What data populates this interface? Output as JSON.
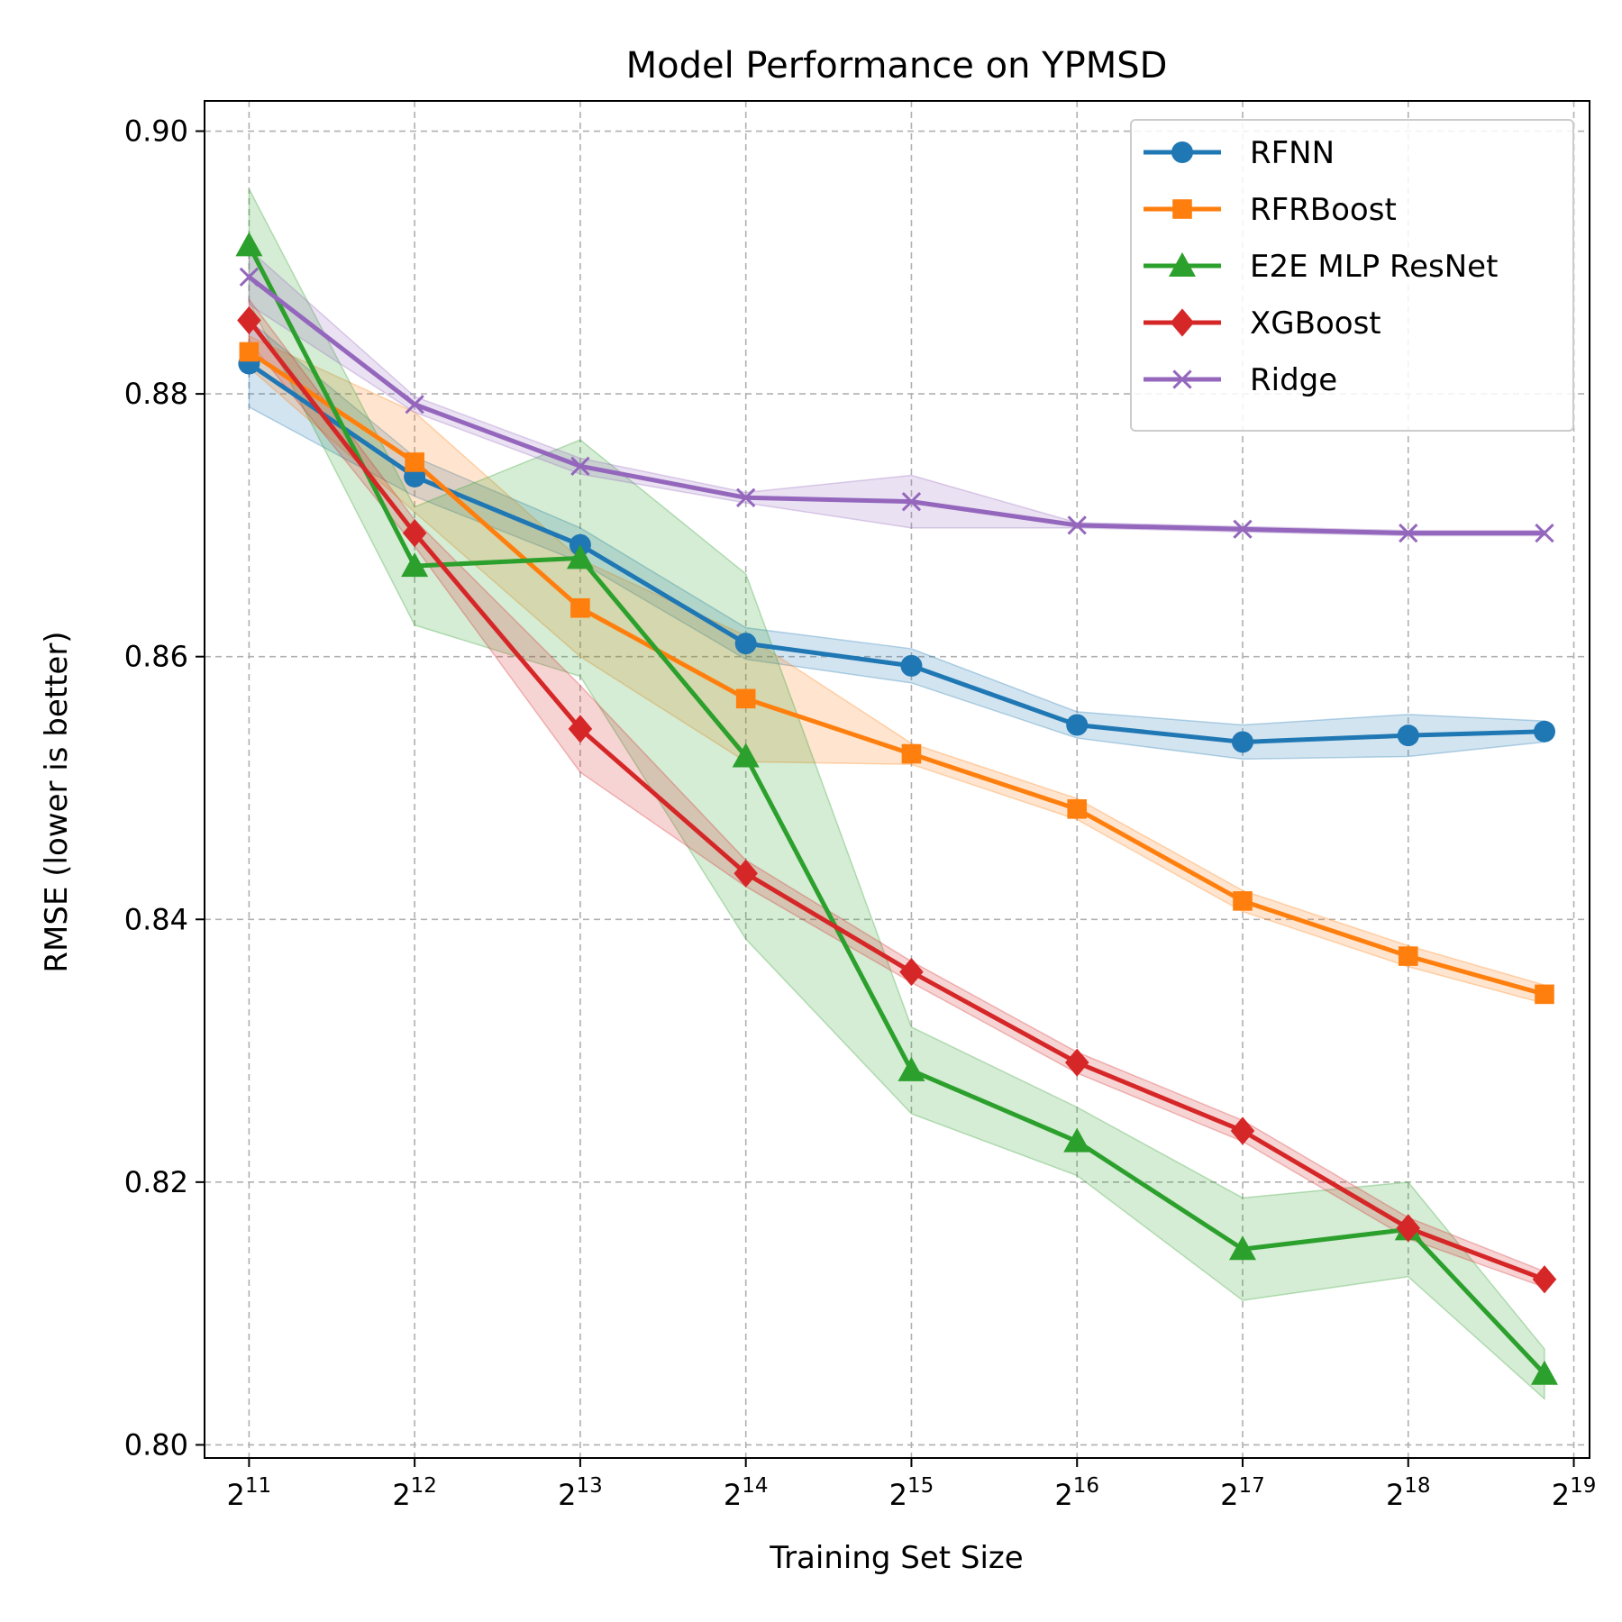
{
  "chart_data": {
    "type": "line",
    "title": "Model Performance on YPMSD",
    "xlabel": "Training Set Size",
    "ylabel": "RMSE (lower is better)",
    "x_scale": "log2",
    "x": [
      2048,
      4096,
      8192,
      16384,
      32768,
      65536,
      131072,
      262144,
      463715
    ],
    "xlim": [
      1700,
      560000
    ],
    "x_ticks": [
      {
        "value": 2048,
        "base": "2",
        "exp": "11"
      },
      {
        "value": 4096,
        "base": "2",
        "exp": "12"
      },
      {
        "value": 8192,
        "base": "2",
        "exp": "13"
      },
      {
        "value": 16384,
        "base": "2",
        "exp": "14"
      },
      {
        "value": 32768,
        "base": "2",
        "exp": "15"
      },
      {
        "value": 65536,
        "base": "2",
        "exp": "16"
      },
      {
        "value": 131072,
        "base": "2",
        "exp": "17"
      },
      {
        "value": 262144,
        "base": "2",
        "exp": "18"
      },
      {
        "value": 524288,
        "base": "2",
        "exp": "19"
      }
    ],
    "ylim": [
      0.799,
      0.9023
    ],
    "y_ticks": [
      {
        "value": 0.8,
        "label": "0.80"
      },
      {
        "value": 0.82,
        "label": "0.82"
      },
      {
        "value": 0.84,
        "label": "0.84"
      },
      {
        "value": 0.86,
        "label": "0.86"
      },
      {
        "value": 0.88,
        "label": "0.88"
      },
      {
        "value": 0.9,
        "label": "0.90"
      }
    ],
    "grid": true,
    "legend_position": "top-right",
    "series": [
      {
        "name": "RFNN",
        "color": "#1f77b4",
        "marker": "circle",
        "values": [
          0.8823,
          0.8737,
          0.8685,
          0.861,
          0.8593,
          0.8548,
          0.8535,
          0.854,
          0.8543
        ],
        "lower": [
          0.879,
          0.8722,
          0.8672,
          0.8598,
          0.858,
          0.8538,
          0.8522,
          0.8524,
          0.8535
        ],
        "upper": [
          0.8856,
          0.8752,
          0.8698,
          0.8622,
          0.8606,
          0.8558,
          0.8548,
          0.8556,
          0.8551
        ]
      },
      {
        "name": "RFRBoost",
        "color": "#ff7f0e",
        "marker": "square",
        "values": [
          0.8832,
          0.8748,
          0.8637,
          0.8568,
          0.8526,
          0.8484,
          0.8414,
          0.8372,
          0.8343
        ],
        "lower": [
          0.882,
          0.871,
          0.86,
          0.852,
          0.8518,
          0.8476,
          0.8406,
          0.8364,
          0.8336
        ],
        "upper": [
          0.8844,
          0.8786,
          0.8674,
          0.8616,
          0.8534,
          0.8492,
          0.8422,
          0.838,
          0.835
        ]
      },
      {
        "name": "E2E MLP ResNet",
        "color": "#2ca02c",
        "marker": "triangle",
        "values": [
          0.8913,
          0.8669,
          0.8675,
          0.8524,
          0.8285,
          0.8231,
          0.8149,
          0.8164,
          0.8054
        ],
        "lower": [
          0.887,
          0.8624,
          0.8585,
          0.8385,
          0.8252,
          0.8205,
          0.811,
          0.8128,
          0.8035
        ],
        "upper": [
          0.8956,
          0.8714,
          0.8765,
          0.8663,
          0.8318,
          0.8257,
          0.8188,
          0.82,
          0.8073
        ]
      },
      {
        "name": "XGBoost",
        "color": "#d62728",
        "marker": "diamond",
        "values": [
          0.8856,
          0.8694,
          0.8545,
          0.8435,
          0.836,
          0.8291,
          0.8239,
          0.8165,
          0.8126
        ],
        "lower": [
          0.884,
          0.8684,
          0.8512,
          0.8425,
          0.8352,
          0.8283,
          0.8231,
          0.8157,
          0.812
        ],
        "upper": [
          0.8872,
          0.8704,
          0.8578,
          0.8445,
          0.8368,
          0.8299,
          0.8247,
          0.8173,
          0.8132
        ]
      },
      {
        "name": "Ridge",
        "color": "#9467bd",
        "marker": "x",
        "values": [
          0.8889,
          0.8792,
          0.8745,
          0.8721,
          0.8718,
          0.87,
          0.8697,
          0.8694,
          0.8694
        ],
        "lower": [
          0.8868,
          0.8786,
          0.8739,
          0.8717,
          0.8698,
          0.8698,
          0.8695,
          0.8692,
          0.8692
        ],
        "upper": [
          0.891,
          0.8798,
          0.8751,
          0.8725,
          0.8738,
          0.8702,
          0.8699,
          0.8696,
          0.8696
        ]
      }
    ]
  }
}
